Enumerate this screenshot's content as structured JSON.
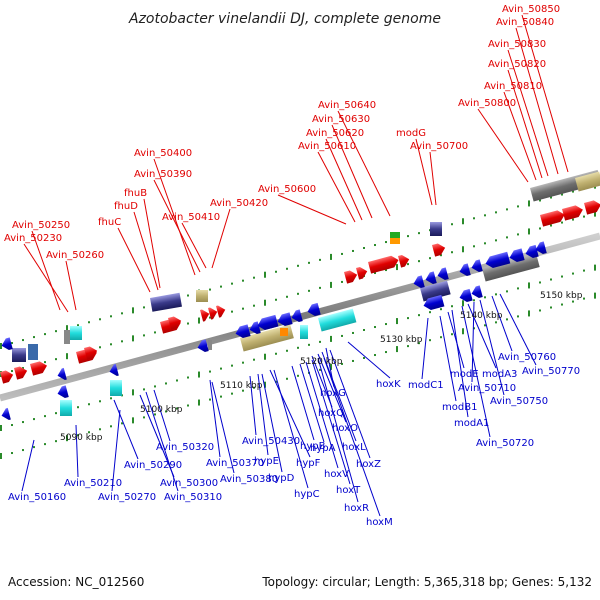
{
  "title": "Azotobacter vinelandii DJ, complete genome",
  "footer": {
    "accession": "Accession: NC_012560",
    "summary": "Topology: circular; Length: 5,365,318 bp; Genes: 5,132"
  },
  "colors": {
    "forward": "#e00000",
    "reverse": "#0000cc",
    "axis": "#8a8a8a",
    "tick": "#2a8a2a"
  },
  "ticks": [
    "5090 kbp",
    "5100 kbp",
    "5110 kbp",
    "5120 kbp",
    "5130 kbp",
    "5140 kbp",
    "5150 kbp"
  ],
  "forward_genes": [
    "Avin_50250",
    "Avin_50230",
    "Avin_50260",
    "fhuC",
    "fhuD",
    "fhuB",
    "Avin_50400",
    "Avin_50390",
    "Avin_50410",
    "Avin_50420",
    "Avin_50600",
    "Avin_50610",
    "Avin_50620",
    "Avin_50630",
    "Avin_50640",
    "modG",
    "Avin_50700",
    "Avin_50800",
    "Avin_50810",
    "Avin_50820",
    "Avin_50830",
    "Avin_50840",
    "Avin_50850"
  ],
  "reverse_genes": [
    "Avin_50160",
    "Avin_50210",
    "Avin_50270",
    "Avin_50290",
    "Avin_50300",
    "Avin_50310",
    "Avin_50320",
    "Avin_50370",
    "Avin_50380",
    "Avin_50430",
    "hypE",
    "hypD",
    "hypF",
    "hypC",
    "hypB",
    "hypA",
    "hoxV",
    "hoxT",
    "hoxR",
    "hoxM",
    "hoxQ",
    "hoxO",
    "hoxL",
    "hoxZ",
    "hoxG",
    "hoxK",
    "modC1",
    "modB1",
    "modE",
    "modA1",
    "Avin_50720",
    "modA3",
    "Avin_50710",
    "Avin_50750",
    "Avin_50760",
    "Avin_50770"
  ]
}
